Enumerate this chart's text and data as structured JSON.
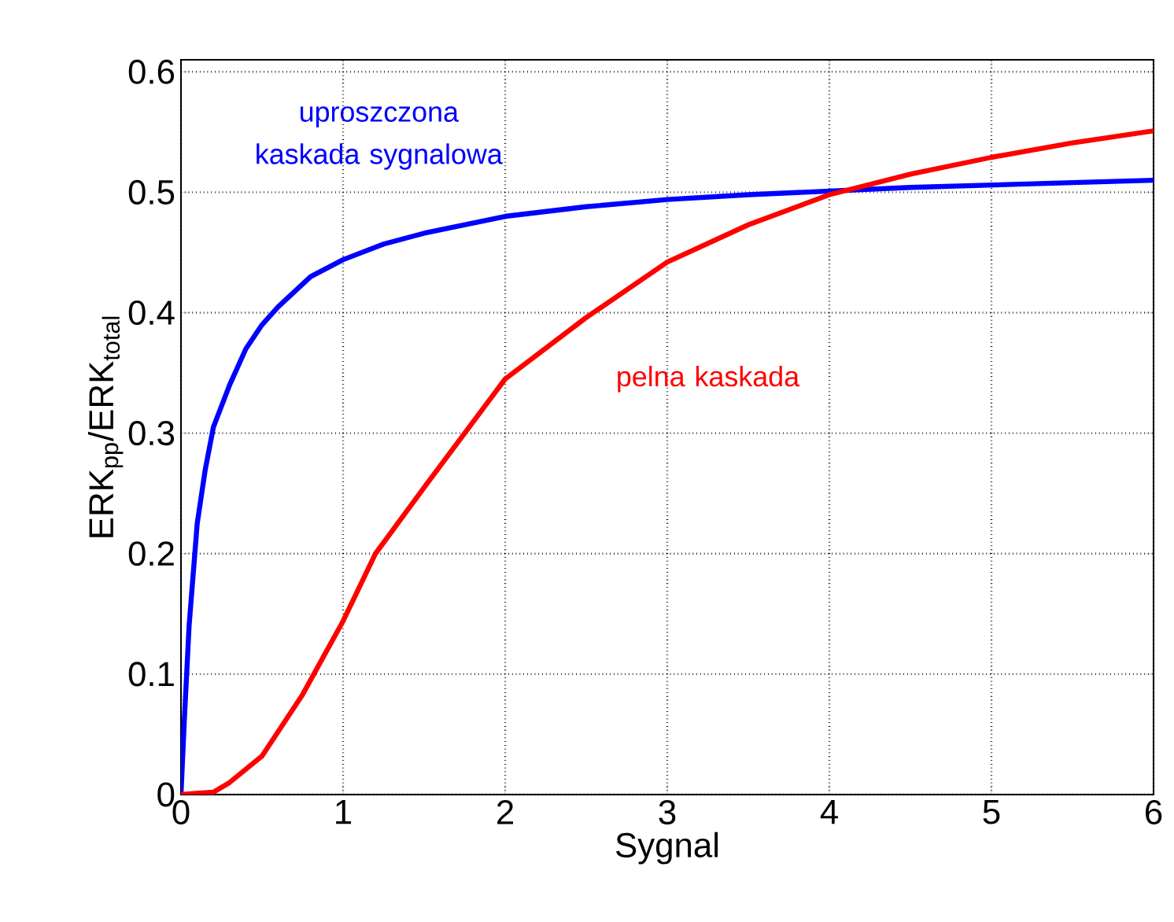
{
  "chart_data": {
    "type": "line",
    "xlabel": "Sygnal",
    "ylabel": "ERK$_{pp}$/ERK$_{total}$",
    "xlim": [
      0,
      6
    ],
    "ylim": [
      0,
      0.61
    ],
    "xticks": [
      0,
      1,
      2,
      3,
      4,
      5,
      6
    ],
    "yticks": [
      0,
      0.1,
      0.2,
      0.3,
      0.4,
      0.5,
      0.6
    ],
    "grid": true,
    "line_style": "solid",
    "series": [
      {
        "name": "uproszczona kaskada sygnalowa",
        "color": "#0000ff",
        "x": [
          0,
          0.02,
          0.05,
          0.1,
          0.15,
          0.2,
          0.3,
          0.4,
          0.5,
          0.6,
          0.8,
          1,
          1.25,
          1.5,
          2,
          2.5,
          3,
          3.5,
          4,
          4.5,
          5,
          5.5,
          6
        ],
        "values": [
          0,
          0.06,
          0.14,
          0.225,
          0.27,
          0.305,
          0.34,
          0.37,
          0.39,
          0.405,
          0.43,
          0.444,
          0.457,
          0.466,
          0.48,
          0.488,
          0.494,
          0.498,
          0.501,
          0.504,
          0.506,
          0.508,
          0.51
        ]
      },
      {
        "name": "pelna kaskada",
        "color": "#ff0000",
        "x": [
          0,
          0.2,
          0.3,
          0.5,
          0.75,
          1,
          1.2,
          1.5,
          2,
          2.5,
          3,
          3.5,
          4,
          4.5,
          5,
          5.5,
          6
        ],
        "values": [
          0,
          0.002,
          0.01,
          0.032,
          0.083,
          0.144,
          0.2,
          0.255,
          0.345,
          0.396,
          0.442,
          0.473,
          0.498,
          0.515,
          0.529,
          0.541,
          0.551
        ]
      }
    ]
  }
}
